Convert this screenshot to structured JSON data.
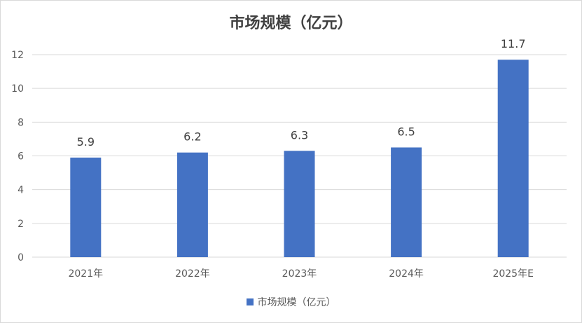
{
  "chart_data": {
    "type": "bar",
    "title": "市场规模（亿元）",
    "categories": [
      "2021年",
      "2022年",
      "2023年",
      "2024年",
      "2025年E"
    ],
    "series": [
      {
        "name": "市场规模（亿元）",
        "values": [
          5.9,
          6.2,
          6.3,
          6.5,
          11.7
        ],
        "color": "#4472C4"
      }
    ],
    "data_labels": [
      "5.9",
      "6.2",
      "6.3",
      "6.5",
      "11.7"
    ],
    "y_ticks": [
      "0",
      "2",
      "4",
      "6",
      "8",
      "10",
      "12"
    ],
    "ylim": [
      0,
      12
    ],
    "grid": true,
    "legend_position": "bottom"
  }
}
